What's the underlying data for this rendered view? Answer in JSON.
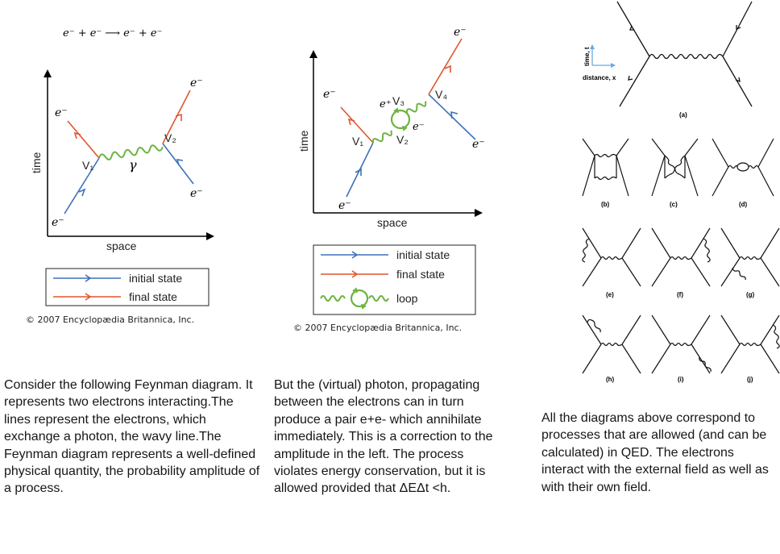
{
  "diagram1": {
    "equation": "e⁻ + e⁻ ⟶ e⁻ + e⁻",
    "axis_time": "time",
    "axis_space": "space",
    "label_e": "e⁻",
    "label_v1": "V₁",
    "label_v2": "V₂",
    "label_gamma": "γ",
    "legend_initial": "initial state",
    "legend_final": "final state",
    "copyright": "© 2007 Encyclopædia Britannica, Inc."
  },
  "diagram2": {
    "axis_time": "time",
    "axis_space": "space",
    "label_e": "e⁻",
    "label_eplus": "e⁺",
    "label_v1": "V₁",
    "label_v2": "V₂",
    "label_v3": "V₃",
    "label_v4": "V₄",
    "legend_initial": "initial state",
    "legend_final": "final state",
    "legend_loop": "loop",
    "copyright": "© 2007 Encyclopædia Britannica, Inc."
  },
  "diagram3": {
    "axis_time": "time, t",
    "axis_distance": "distance, x",
    "panel_labels": [
      "(a)",
      "(b)",
      "(c)",
      "(d)",
      "(e)",
      "(f)",
      "(g)",
      "(h)",
      "(i)",
      "(j)"
    ]
  },
  "text": {
    "para1": "Consider the following Feynman diagram. It represents two electrons interacting.The lines represent the electrons, which exchange a photon, the wavy line.The Feynman diagram represents a well-defined physical quantity, the probability amplitude of a process.",
    "para2": "But the (virtual) photon, propagating between the electrons can in turn produce a pair e+e- which annihilate immediately. This is a correction to the amplitude in the left. The process violates energy conservation, but it is allowed provided that ΔEΔt <h.",
    "para3": "All the diagrams above correspond to processes that are allowed (and can be calculated) in QED. The electrons interact with the external field as well as with their own field."
  },
  "colors": {
    "initial": "#3d72b8",
    "final": "#e0552e",
    "photon": "#6cb33f"
  }
}
